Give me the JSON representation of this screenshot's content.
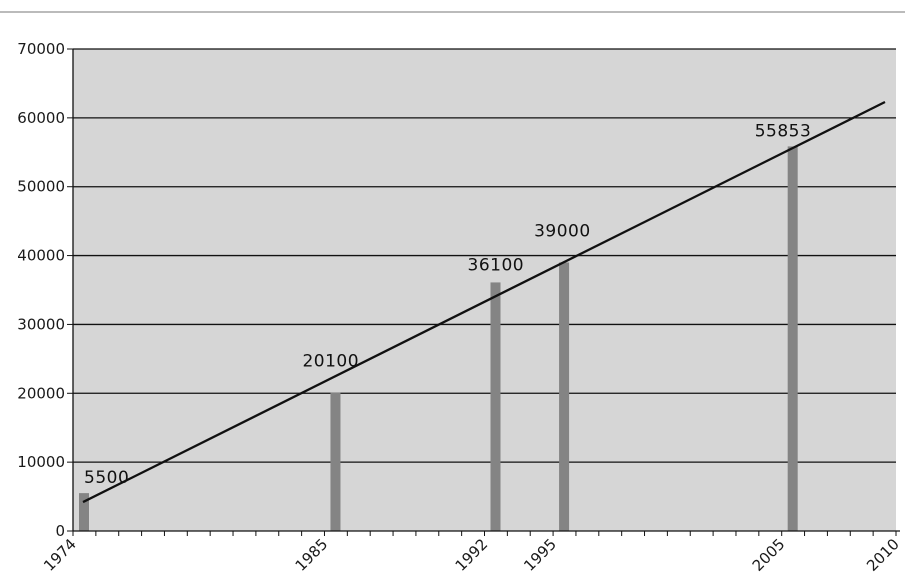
{
  "chart_data": {
    "type": "bar",
    "x": [
      1974,
      1985,
      1992,
      1995,
      2005
    ],
    "values": [
      5500,
      20100,
      36100,
      39000,
      55853
    ],
    "data_labels": [
      "5500",
      "20100",
      "36100",
      "39000",
      "55853"
    ],
    "x_tick_labels": [
      "1974",
      "1985",
      "1992",
      "1995",
      "2005",
      "2010"
    ],
    "x_tick_values": [
      1974,
      1985,
      1992,
      1995,
      2005,
      2010
    ],
    "y_tick_labels": [
      "0",
      "10000",
      "20000",
      "30000",
      "40000",
      "50000",
      "60000",
      "70000"
    ],
    "y_tick_values": [
      0,
      10000,
      20000,
      30000,
      40000,
      50000,
      60000,
      70000
    ],
    "xlim": [
      1974,
      2010
    ],
    "ylim": [
      0,
      70000
    ],
    "trendline": {
      "x": [
        1974,
        2010
      ],
      "y": [
        4200,
        62300
      ]
    },
    "grid": "horizontal",
    "title": "",
    "xlabel": "",
    "ylabel": "",
    "colors": {
      "plot_background": "#d6d6d6",
      "bar": "#848484",
      "trendline": "#111111",
      "gridline": "#111111"
    }
  }
}
